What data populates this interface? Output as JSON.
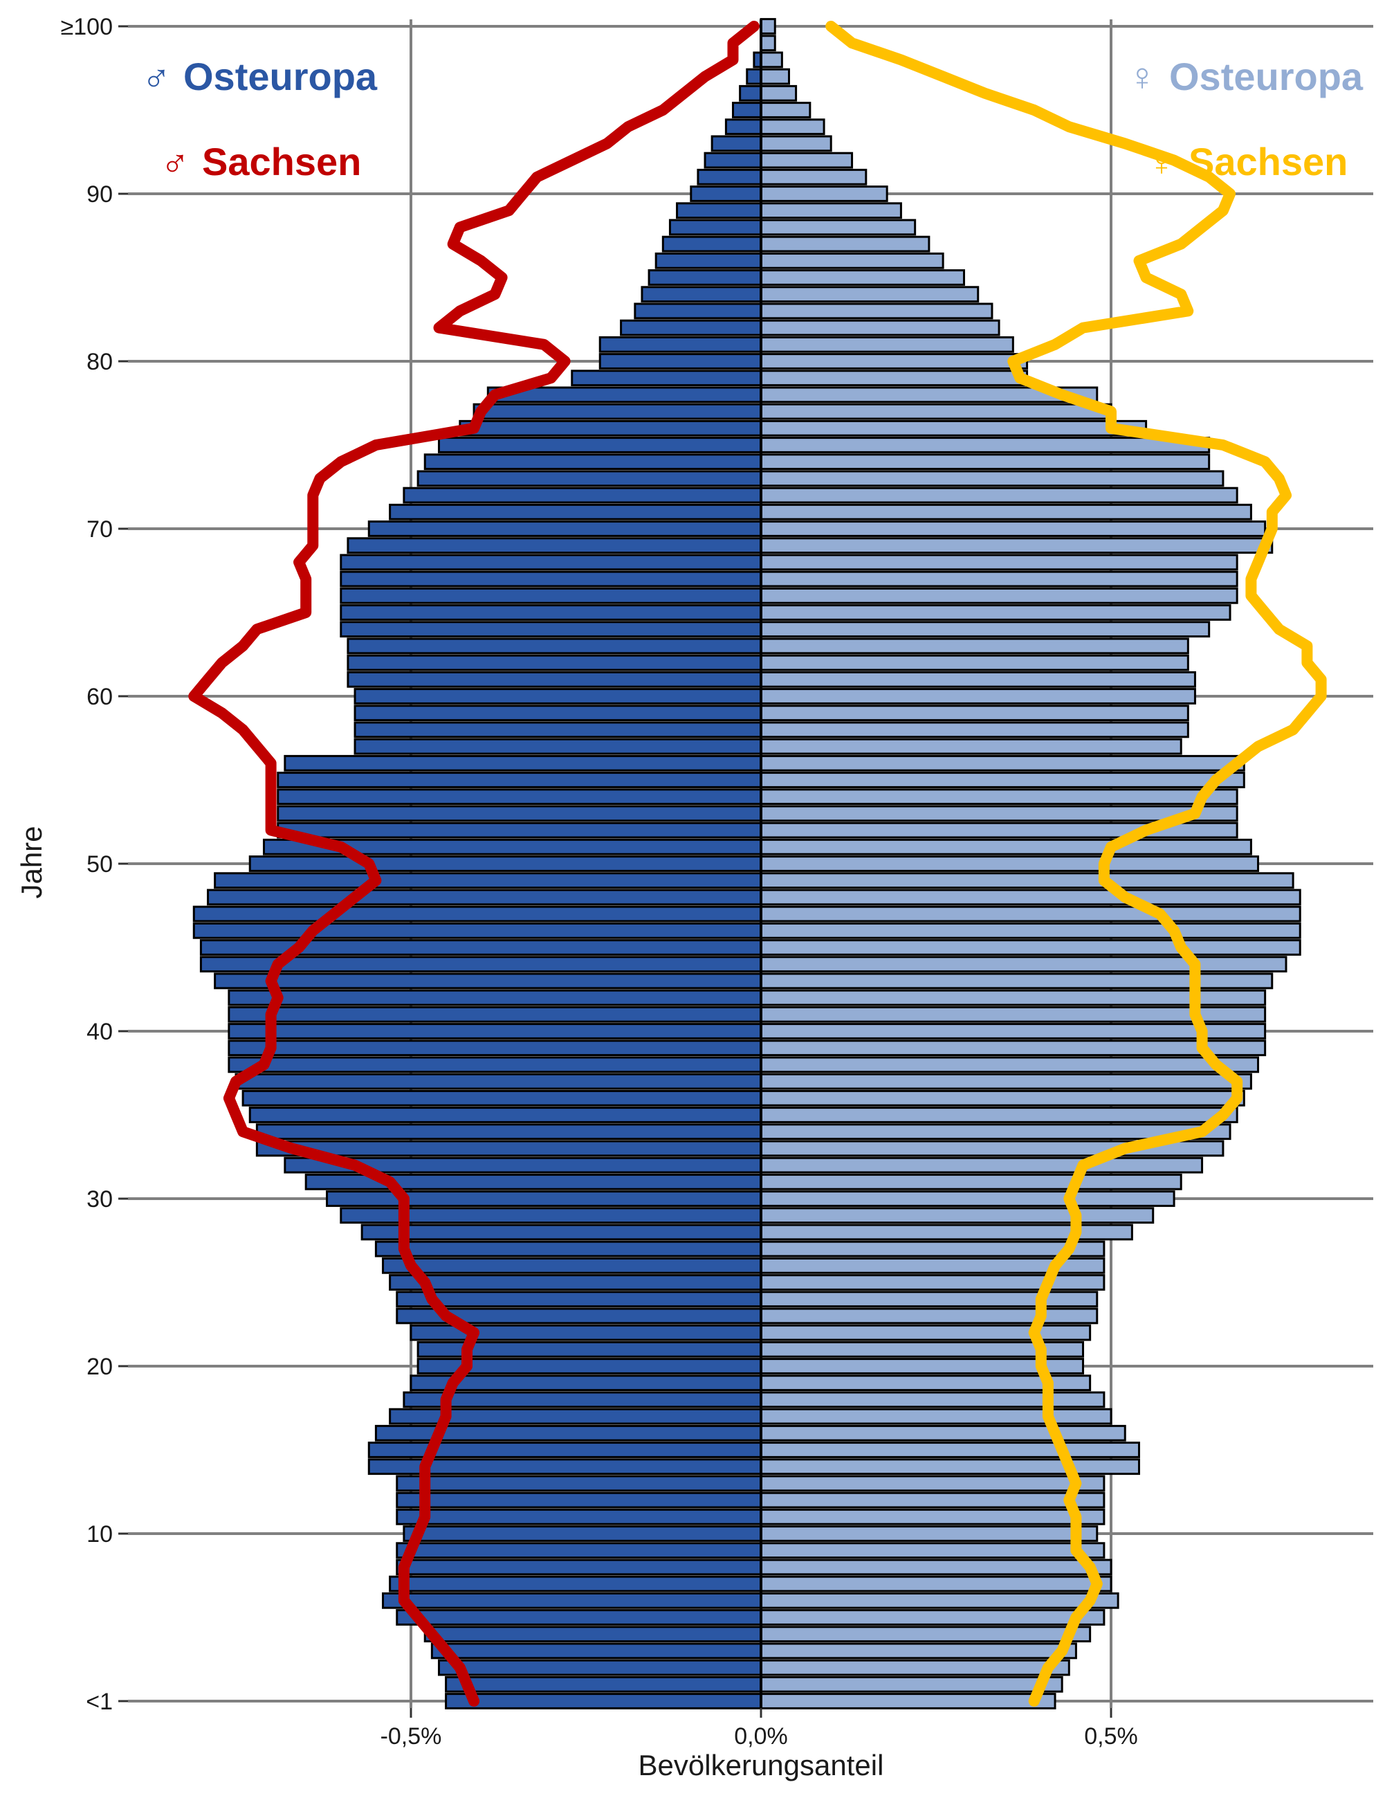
{
  "chart_data": {
    "type": "bar",
    "orientation": "horizontal-pyramid",
    "xlabel": "Bevölkerungsanteil",
    "ylabel": "Jahre",
    "xlim": [
      -0.9,
      0.9
    ],
    "ylim": [
      0,
      100
    ],
    "x_ticks": [
      {
        "value": -0.5,
        "label": "-0,5%"
      },
      {
        "value": 0.0,
        "label": "0,0%"
      },
      {
        "value": 0.5,
        "label": "0,5%"
      }
    ],
    "y_ticks": [
      {
        "value": 0,
        "label": "<1"
      },
      {
        "value": 10,
        "label": "10"
      },
      {
        "value": 20,
        "label": "20"
      },
      {
        "value": 30,
        "label": "30"
      },
      {
        "value": 40,
        "label": "40"
      },
      {
        "value": 50,
        "label": "50"
      },
      {
        "value": 60,
        "label": "60"
      },
      {
        "value": 70,
        "label": "70"
      },
      {
        "value": 80,
        "label": "80"
      },
      {
        "value": 90,
        "label": "90"
      },
      {
        "value": 100,
        "label": "≥100"
      }
    ],
    "grid": true,
    "legend": [
      {
        "symbol": "♂",
        "label": "Osteuropa",
        "color": "#2b57a4",
        "position": "top-left"
      },
      {
        "symbol": "♂",
        "label": "Sachsen",
        "color": "#c00000",
        "position": "top-left"
      },
      {
        "symbol": "♀",
        "label": "Osteuropa",
        "color": "#94add4",
        "position": "top-right"
      },
      {
        "symbol": "♀",
        "label": "Sachsen",
        "color": "#ffc000",
        "position": "top-right"
      }
    ],
    "ages": [
      0,
      1,
      2,
      3,
      4,
      5,
      6,
      7,
      8,
      9,
      10,
      11,
      12,
      13,
      14,
      15,
      16,
      17,
      18,
      19,
      20,
      21,
      22,
      23,
      24,
      25,
      26,
      27,
      28,
      29,
      30,
      31,
      32,
      33,
      34,
      35,
      36,
      37,
      38,
      39,
      40,
      41,
      42,
      43,
      44,
      45,
      46,
      47,
      48,
      49,
      50,
      51,
      52,
      53,
      54,
      55,
      56,
      57,
      58,
      59,
      60,
      61,
      62,
      63,
      64,
      65,
      66,
      67,
      68,
      69,
      70,
      71,
      72,
      73,
      74,
      75,
      76,
      77,
      78,
      79,
      80,
      81,
      82,
      83,
      84,
      85,
      86,
      87,
      88,
      89,
      90,
      91,
      92,
      93,
      94,
      95,
      96,
      97,
      98,
      99,
      100
    ],
    "series": [
      {
        "name": "♂ Osteuropa",
        "color": "#2b57a4",
        "kind": "bar",
        "values": [
          0.45,
          0.45,
          0.46,
          0.47,
          0.48,
          0.52,
          0.54,
          0.53,
          0.52,
          0.52,
          0.51,
          0.52,
          0.52,
          0.52,
          0.56,
          0.56,
          0.55,
          0.53,
          0.51,
          0.5,
          0.49,
          0.49,
          0.5,
          0.52,
          0.52,
          0.53,
          0.54,
          0.55,
          0.57,
          0.6,
          0.62,
          0.65,
          0.68,
          0.72,
          0.72,
          0.73,
          0.74,
          0.75,
          0.76,
          0.76,
          0.76,
          0.76,
          0.76,
          0.78,
          0.8,
          0.8,
          0.81,
          0.81,
          0.79,
          0.78,
          0.73,
          0.71,
          0.69,
          0.69,
          0.69,
          0.69,
          0.68,
          0.58,
          0.58,
          0.58,
          0.58,
          0.59,
          0.59,
          0.59,
          0.6,
          0.6,
          0.6,
          0.6,
          0.6,
          0.59,
          0.56,
          0.53,
          0.51,
          0.49,
          0.48,
          0.46,
          0.43,
          0.41,
          0.39,
          0.27,
          0.23,
          0.23,
          0.2,
          0.18,
          0.17,
          0.16,
          0.15,
          0.14,
          0.13,
          0.12,
          0.1,
          0.09,
          0.08,
          0.07,
          0.05,
          0.04,
          0.03,
          0.02,
          0.01,
          0.0,
          0.0
        ]
      },
      {
        "name": "♀ Osteuropa",
        "color": "#94add4",
        "kind": "bar",
        "values": [
          0.42,
          0.43,
          0.44,
          0.45,
          0.47,
          0.49,
          0.51,
          0.5,
          0.5,
          0.49,
          0.48,
          0.49,
          0.49,
          0.49,
          0.54,
          0.54,
          0.52,
          0.5,
          0.49,
          0.47,
          0.46,
          0.46,
          0.47,
          0.48,
          0.48,
          0.49,
          0.49,
          0.49,
          0.53,
          0.56,
          0.59,
          0.6,
          0.63,
          0.66,
          0.67,
          0.68,
          0.69,
          0.7,
          0.71,
          0.72,
          0.72,
          0.72,
          0.72,
          0.73,
          0.75,
          0.77,
          0.77,
          0.77,
          0.77,
          0.76,
          0.71,
          0.7,
          0.68,
          0.68,
          0.68,
          0.69,
          0.69,
          0.6,
          0.61,
          0.61,
          0.62,
          0.62,
          0.61,
          0.61,
          0.64,
          0.67,
          0.68,
          0.68,
          0.68,
          0.73,
          0.72,
          0.7,
          0.68,
          0.66,
          0.64,
          0.64,
          0.55,
          0.5,
          0.48,
          0.38,
          0.38,
          0.36,
          0.34,
          0.33,
          0.31,
          0.29,
          0.26,
          0.24,
          0.22,
          0.2,
          0.18,
          0.15,
          0.13,
          0.1,
          0.09,
          0.07,
          0.05,
          0.04,
          0.03,
          0.02,
          0.02
        ]
      },
      {
        "name": "♂ Sachsen",
        "color": "#c00000",
        "kind": "line",
        "values": [
          0.41,
          0.42,
          0.43,
          0.45,
          0.47,
          0.49,
          0.51,
          0.51,
          0.51,
          0.5,
          0.49,
          0.48,
          0.48,
          0.48,
          0.48,
          0.47,
          0.46,
          0.45,
          0.45,
          0.44,
          0.42,
          0.42,
          0.41,
          0.45,
          0.47,
          0.48,
          0.5,
          0.51,
          0.51,
          0.51,
          0.51,
          0.53,
          0.58,
          0.67,
          0.74,
          0.75,
          0.76,
          0.75,
          0.71,
          0.7,
          0.7,
          0.7,
          0.69,
          0.7,
          0.69,
          0.66,
          0.64,
          0.61,
          0.58,
          0.55,
          0.56,
          0.6,
          0.7,
          0.7,
          0.7,
          0.7,
          0.7,
          0.72,
          0.74,
          0.77,
          0.81,
          0.79,
          0.77,
          0.74,
          0.72,
          0.65,
          0.65,
          0.65,
          0.66,
          0.64,
          0.64,
          0.64,
          0.64,
          0.63,
          0.6,
          0.55,
          0.41,
          0.4,
          0.38,
          0.3,
          0.28,
          0.31,
          0.46,
          0.43,
          0.38,
          0.37,
          0.4,
          0.44,
          0.43,
          0.36,
          0.34,
          0.32,
          0.27,
          0.22,
          0.19,
          0.14,
          0.11,
          0.08,
          0.04,
          0.04,
          0.01
        ]
      },
      {
        "name": "♀ Sachsen",
        "color": "#ffc000",
        "kind": "line",
        "values": [
          0.39,
          0.4,
          0.41,
          0.43,
          0.44,
          0.45,
          0.47,
          0.48,
          0.47,
          0.45,
          0.45,
          0.45,
          0.44,
          0.45,
          0.44,
          0.43,
          0.42,
          0.41,
          0.41,
          0.41,
          0.4,
          0.4,
          0.39,
          0.4,
          0.4,
          0.41,
          0.42,
          0.44,
          0.45,
          0.45,
          0.44,
          0.45,
          0.46,
          0.52,
          0.63,
          0.66,
          0.68,
          0.68,
          0.65,
          0.63,
          0.63,
          0.62,
          0.62,
          0.62,
          0.62,
          0.6,
          0.59,
          0.57,
          0.52,
          0.49,
          0.49,
          0.5,
          0.55,
          0.62,
          0.63,
          0.65,
          0.68,
          0.71,
          0.76,
          0.78,
          0.8,
          0.8,
          0.78,
          0.78,
          0.74,
          0.72,
          0.7,
          0.7,
          0.71,
          0.72,
          0.73,
          0.73,
          0.75,
          0.74,
          0.72,
          0.66,
          0.5,
          0.5,
          0.43,
          0.37,
          0.36,
          0.42,
          0.46,
          0.61,
          0.6,
          0.55,
          0.54,
          0.6,
          0.63,
          0.66,
          0.67,
          0.64,
          0.59,
          0.52,
          0.44,
          0.39,
          0.32,
          0.26,
          0.2,
          0.13,
          0.1
        ]
      }
    ]
  }
}
